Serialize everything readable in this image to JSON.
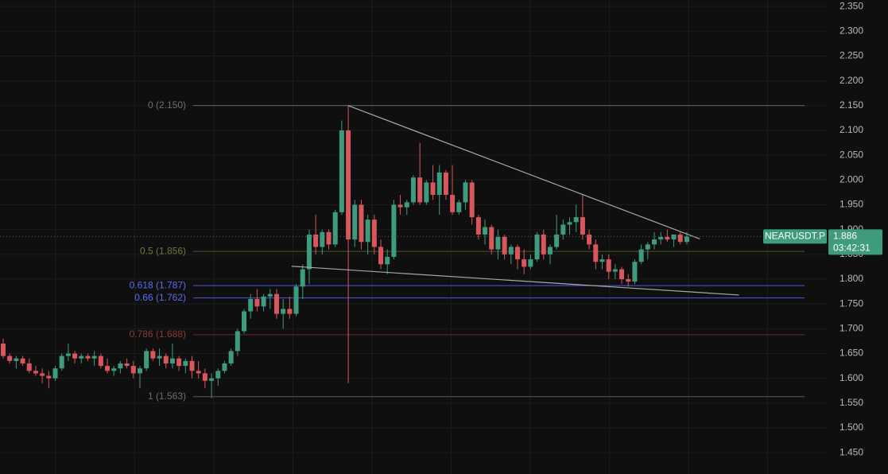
{
  "chart_data": {
    "type": "candlestick",
    "symbol": "NEARUSDT.P",
    "last_price": 1.886,
    "countdown": "03:42:31",
    "up_color": "#3f9b7e",
    "down_color": "#d9565c",
    "ylim": [
      1.407,
      2.363
    ],
    "yticks": [
      {
        "value": 2.35,
        "label": "2.350"
      },
      {
        "value": 2.3,
        "label": "2.300"
      },
      {
        "value": 2.25,
        "label": "2.250"
      },
      {
        "value": 2.2,
        "label": "2.200"
      },
      {
        "value": 2.15,
        "label": "2.150"
      },
      {
        "value": 2.1,
        "label": "2.100"
      },
      {
        "value": 2.05,
        "label": "2.050"
      },
      {
        "value": 2.0,
        "label": "2.000"
      },
      {
        "value": 1.95,
        "label": "1.950"
      },
      {
        "value": 1.9,
        "label": "1.900"
      },
      {
        "value": 1.85,
        "label": "1.850"
      },
      {
        "value": 1.8,
        "label": "1.800"
      },
      {
        "value": 1.75,
        "label": "1.750"
      },
      {
        "value": 1.7,
        "label": "1.700"
      },
      {
        "value": 1.65,
        "label": "1.650"
      },
      {
        "value": 1.6,
        "label": "1.600"
      },
      {
        "value": 1.55,
        "label": "1.550"
      },
      {
        "value": 1.5,
        "label": "1.500"
      },
      {
        "value": 1.45,
        "label": "1.450"
      }
    ],
    "fib_levels": [
      {
        "label": "0 (2.150)",
        "value": 2.15,
        "color": "#6b6b6b"
      },
      {
        "label": "0.5 (1.856)",
        "value": 1.856,
        "color": "#4e5a2e"
      },
      {
        "label": "0.618 (1.787)",
        "value": 1.787,
        "color": "#4a5bd8"
      },
      {
        "label": "0.66 (1.762)",
        "value": 1.762,
        "color": "#4a5bd8"
      },
      {
        "label": "0.786 (1.688)",
        "value": 1.688,
        "color": "#6b2f2f"
      },
      {
        "label": "1 (1.563)",
        "value": 1.563,
        "color": "#5a5a5a"
      }
    ],
    "trendlines": [
      {
        "x": [
          53,
          107
        ],
        "y": [
          2.15,
          1.881
        ]
      },
      {
        "x": [
          44.3,
          113
        ],
        "y": [
          1.826,
          1.768
        ]
      }
    ],
    "candles": [
      [
        1.67,
        1.68,
        1.64,
        1.645
      ],
      [
        1.645,
        1.65,
        1.63,
        1.635
      ],
      [
        1.635,
        1.645,
        1.62,
        1.64
      ],
      [
        1.64,
        1.645,
        1.625,
        1.63
      ],
      [
        1.63,
        1.64,
        1.61,
        1.615
      ],
      [
        1.615,
        1.625,
        1.605,
        1.61
      ],
      [
        1.61,
        1.62,
        1.59,
        1.605
      ],
      [
        1.605,
        1.615,
        1.58,
        1.6
      ],
      [
        1.6,
        1.625,
        1.595,
        1.62
      ],
      [
        1.62,
        1.65,
        1.615,
        1.645
      ],
      [
        1.645,
        1.67,
        1.635,
        1.65
      ],
      [
        1.65,
        1.655,
        1.63,
        1.64
      ],
      [
        1.64,
        1.65,
        1.63,
        1.645
      ],
      [
        1.645,
        1.65,
        1.635,
        1.64
      ],
      [
        1.64,
        1.655,
        1.625,
        1.645
      ],
      [
        1.645,
        1.65,
        1.62,
        1.625
      ],
      [
        1.625,
        1.64,
        1.61,
        1.615
      ],
      [
        1.615,
        1.625,
        1.605,
        1.62
      ],
      [
        1.62,
        1.635,
        1.61,
        1.63
      ],
      [
        1.63,
        1.64,
        1.62,
        1.625
      ],
      [
        1.625,
        1.635,
        1.6,
        1.61
      ],
      [
        1.61,
        1.625,
        1.58,
        1.62
      ],
      [
        1.62,
        1.66,
        1.615,
        1.655
      ],
      [
        1.655,
        1.66,
        1.635,
        1.64
      ],
      [
        1.64,
        1.66,
        1.625,
        1.645
      ],
      [
        1.645,
        1.65,
        1.62,
        1.63
      ],
      [
        1.63,
        1.67,
        1.62,
        1.64
      ],
      [
        1.64,
        1.645,
        1.615,
        1.625
      ],
      [
        1.625,
        1.64,
        1.61,
        1.635
      ],
      [
        1.635,
        1.645,
        1.6,
        1.615
      ],
      [
        1.615,
        1.635,
        1.6,
        1.61
      ],
      [
        1.61,
        1.62,
        1.58,
        1.595
      ],
      [
        1.595,
        1.61,
        1.56,
        1.6
      ],
      [
        1.6,
        1.62,
        1.585,
        1.615
      ],
      [
        1.615,
        1.635,
        1.61,
        1.63
      ],
      [
        1.63,
        1.66,
        1.625,
        1.655
      ],
      [
        1.655,
        1.7,
        1.645,
        1.695
      ],
      [
        1.695,
        1.74,
        1.69,
        1.735
      ],
      [
        1.735,
        1.77,
        1.72,
        1.76
      ],
      [
        1.76,
        1.78,
        1.735,
        1.745
      ],
      [
        1.745,
        1.77,
        1.735,
        1.765
      ],
      [
        1.765,
        1.78,
        1.74,
        1.77
      ],
      [
        1.77,
        1.78,
        1.72,
        1.73
      ],
      [
        1.73,
        1.76,
        1.7,
        1.74
      ],
      [
        1.74,
        1.765,
        1.72,
        1.73
      ],
      [
        1.73,
        1.79,
        1.725,
        1.785
      ],
      [
        1.785,
        1.83,
        1.76,
        1.82
      ],
      [
        1.82,
        1.9,
        1.79,
        1.89
      ],
      [
        1.89,
        1.93,
        1.85,
        1.865
      ],
      [
        1.865,
        1.9,
        1.85,
        1.895
      ],
      [
        1.895,
        1.9,
        1.86,
        1.87
      ],
      [
        1.87,
        1.94,
        1.865,
        1.935
      ],
      [
        1.935,
        2.12,
        1.93,
        2.1
      ],
      [
        2.1,
        2.15,
        1.59,
        1.88
      ],
      [
        1.88,
        1.96,
        1.865,
        1.95
      ],
      [
        1.95,
        1.96,
        1.86,
        1.875
      ],
      [
        1.875,
        1.93,
        1.85,
        1.92
      ],
      [
        1.92,
        1.93,
        1.85,
        1.865
      ],
      [
        1.865,
        1.88,
        1.82,
        1.83
      ],
      [
        1.83,
        1.86,
        1.81,
        1.845
      ],
      [
        1.845,
        1.96,
        1.84,
        1.95
      ],
      [
        1.95,
        1.97,
        1.93,
        1.945
      ],
      [
        1.945,
        1.96,
        1.93,
        1.955
      ],
      [
        1.955,
        2.01,
        1.95,
        2.005
      ],
      [
        2.005,
        2.075,
        1.95,
        1.955
      ],
      [
        1.955,
        2.0,
        1.95,
        1.995
      ],
      [
        1.995,
        2.03,
        1.96,
        1.97
      ],
      [
        1.97,
        2.03,
        1.93,
        2.015
      ],
      [
        2.015,
        2.02,
        1.96,
        1.97
      ],
      [
        1.97,
        2.03,
        1.93,
        1.935
      ],
      [
        1.935,
        1.96,
        1.93,
        1.955
      ],
      [
        1.955,
        2.0,
        1.94,
        1.995
      ],
      [
        1.995,
        2.0,
        1.91,
        1.925
      ],
      [
        1.925,
        1.93,
        1.88,
        1.89
      ],
      [
        1.89,
        1.92,
        1.87,
        1.905
      ],
      [
        1.905,
        1.91,
        1.85,
        1.86
      ],
      [
        1.86,
        1.9,
        1.84,
        1.885
      ],
      [
        1.885,
        1.89,
        1.84,
        1.85
      ],
      [
        1.85,
        1.87,
        1.83,
        1.865
      ],
      [
        1.865,
        1.87,
        1.82,
        1.84
      ],
      [
        1.84,
        1.86,
        1.81,
        1.825
      ],
      [
        1.825,
        1.85,
        1.82,
        1.84
      ],
      [
        1.84,
        1.895,
        1.835,
        1.89
      ],
      [
        1.89,
        1.9,
        1.84,
        1.85
      ],
      [
        1.85,
        1.87,
        1.83,
        1.865
      ],
      [
        1.865,
        1.93,
        1.86,
        1.89
      ],
      [
        1.89,
        1.92,
        1.88,
        1.91
      ],
      [
        1.91,
        1.925,
        1.89,
        1.915
      ],
      [
        1.915,
        1.95,
        1.895,
        1.925
      ],
      [
        1.925,
        1.97,
        1.88,
        1.89
      ],
      [
        1.89,
        1.9,
        1.86,
        1.87
      ],
      [
        1.87,
        1.88,
        1.82,
        1.835
      ],
      [
        1.835,
        1.85,
        1.82,
        1.84
      ],
      [
        1.84,
        1.85,
        1.8,
        1.815
      ],
      [
        1.815,
        1.83,
        1.8,
        1.82
      ],
      [
        1.82,
        1.825,
        1.79,
        1.8
      ],
      [
        1.8,
        1.81,
        1.785,
        1.795
      ],
      [
        1.795,
        1.84,
        1.79,
        1.835
      ],
      [
        1.835,
        1.87,
        1.83,
        1.86
      ],
      [
        1.86,
        1.875,
        1.84,
        1.87
      ],
      [
        1.87,
        1.895,
        1.86,
        1.88
      ],
      [
        1.88,
        1.895,
        1.87,
        1.885
      ],
      [
        1.885,
        1.9,
        1.875,
        1.88
      ],
      [
        1.88,
        1.89,
        1.865,
        1.89
      ],
      [
        1.89,
        1.895,
        1.87,
        1.875
      ],
      [
        1.875,
        1.895,
        1.87,
        1.886
      ]
    ]
  }
}
